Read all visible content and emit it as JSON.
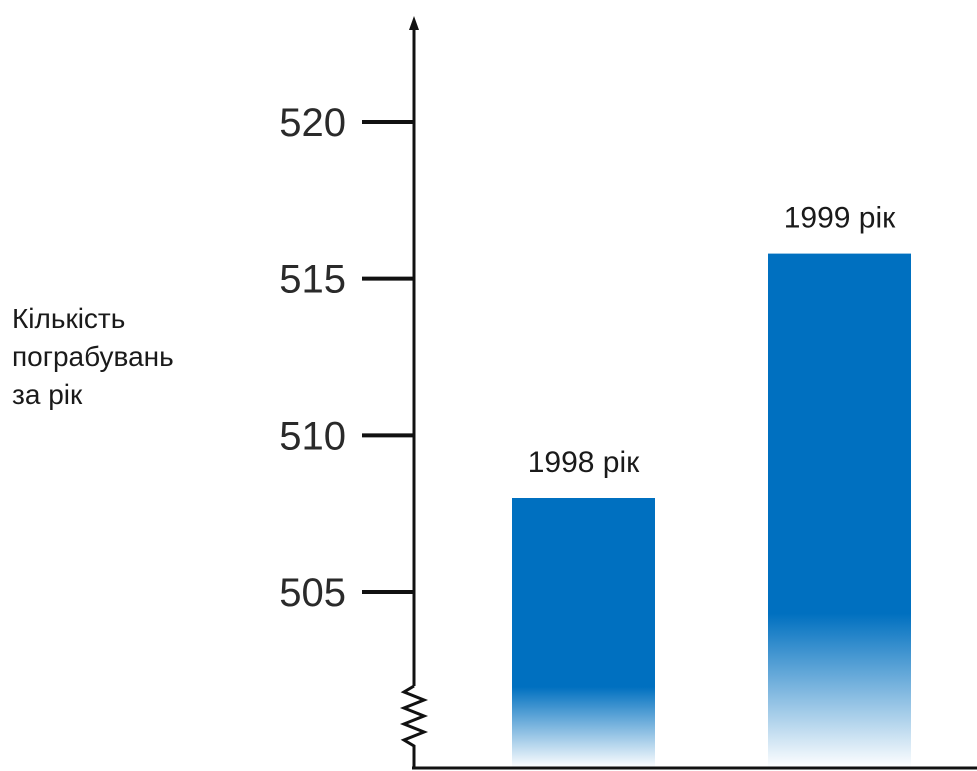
{
  "chart_data": {
    "type": "bar",
    "title": "",
    "xlabel": "",
    "ylabel_lines": [
      "Кількість",
      "пограбувань",
      "за рік"
    ],
    "categories": [
      "1998 рік",
      "1999 рік"
    ],
    "values": [
      508,
      515.8
    ],
    "yticks": [
      505,
      510,
      515,
      520
    ],
    "ylim": [
      500,
      522
    ],
    "axis_break": true,
    "grid": false,
    "bar_color": "#0070c0"
  }
}
